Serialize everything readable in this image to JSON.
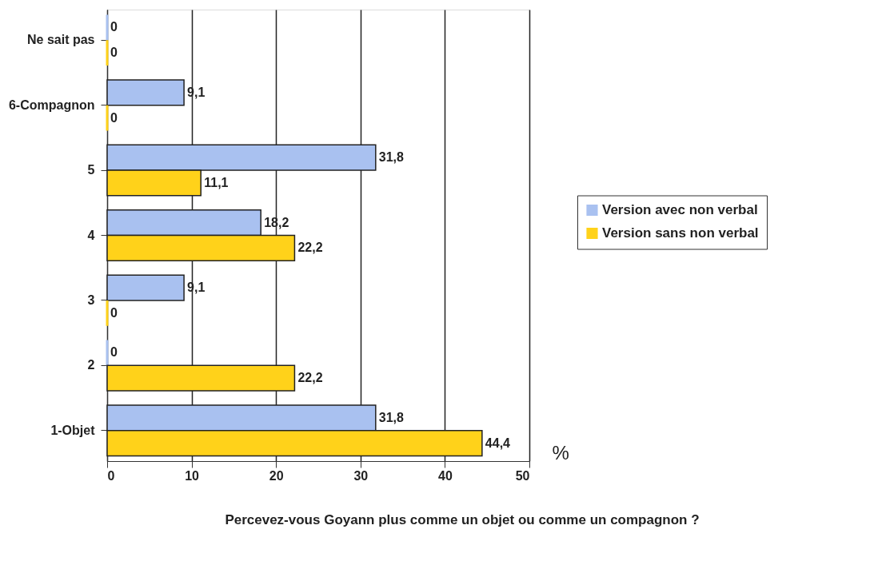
{
  "chart_data": {
    "type": "bar",
    "orientation": "horizontal",
    "title": "Percevez-vous Goyann plus comme un objet ou comme un compagnon ?",
    "xlabel": "%",
    "categories": [
      "Ne sait pas",
      "6-Compagnon",
      "5",
      "4",
      "3",
      "2",
      "1-Objet"
    ],
    "series": [
      {
        "name": "Version avec non verbal",
        "color": "#a9c1f0",
        "values": [
          0,
          9.1,
          31.8,
          18.2,
          9.1,
          0,
          31.8
        ],
        "value_labels": [
          "0",
          "9,1",
          "31,8",
          "18,2",
          "9,1",
          "0",
          "31,8"
        ]
      },
      {
        "name": "Version sans non verbal",
        "color": "#ffd21a",
        "values": [
          0,
          0,
          11.1,
          22.2,
          0,
          22.2,
          44.4
        ],
        "value_labels": [
          "0",
          "0",
          "11,1",
          "22,2",
          "0",
          "22,2",
          "44,4"
        ]
      }
    ],
    "xlim": [
      0,
      50
    ],
    "xticks": [
      0,
      10,
      20,
      30,
      40,
      50
    ],
    "grid": "x",
    "legend": "right"
  }
}
